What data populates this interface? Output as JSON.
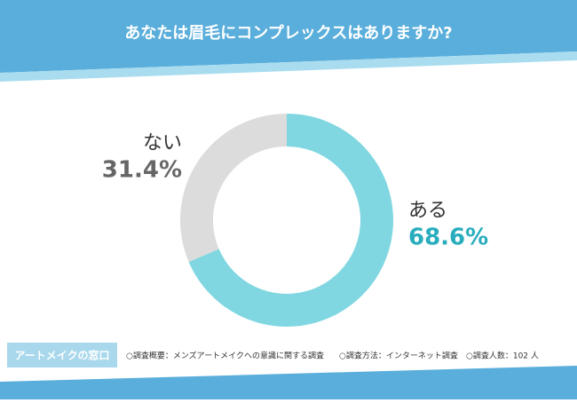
{
  "chart_data": {
    "type": "donut",
    "title": "あなたは眉毛にコンプレックスはありますか?",
    "categories": [
      "ある",
      "ない"
    ],
    "values": [
      68.6,
      31.4
    ],
    "value_labels": [
      "68.6%",
      "31.4%"
    ],
    "colors": [
      "#80d7e1",
      "#dcdcdc"
    ],
    "label_colors": [
      "#29adbd",
      "#666666"
    ]
  },
  "footer": {
    "badge": "アートメイクの窓口",
    "notes": [
      "○調査概要：メンズアートメイクへの意識に関する調査",
      "○調査方法：インターネット調査",
      "○調査人数：102 人"
    ]
  }
}
